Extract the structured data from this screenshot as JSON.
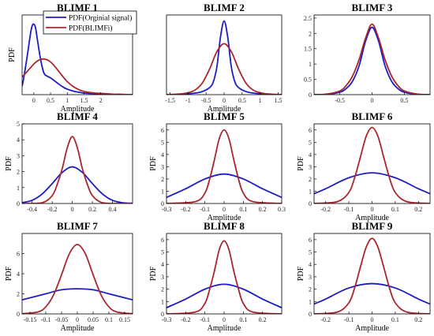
{
  "colors": {
    "original": "#1c1cc4",
    "blimf": "#a8262d",
    "axis": "#000000",
    "background": "#ffffff"
  },
  "legend": {
    "placement": "top-right",
    "original_label": "PDF(Orginial signal)",
    "blimf_label": "PDF(BLIMFi)"
  },
  "chart_data": [
    {
      "type": "line",
      "title": "BLIMF 1",
      "xlabel": "Amplitude",
      "ylabel": "PDF",
      "xlim": [
        -0.35,
        2.95
      ],
      "ylim": [
        0,
        1.9
      ],
      "xticks": [
        0,
        0.5,
        1,
        1.5,
        2
      ],
      "xtick_labels": [
        "0",
        "0.5",
        "1",
        "1.5",
        "2"
      ],
      "yticks": [],
      "ytick_labels": [],
      "series": [
        {
          "name": "PDF(Orginial signal)",
          "x": [
            -0.35,
            -0.3,
            -0.2,
            -0.1,
            -0.05,
            0,
            0.05,
            0.1,
            0.2,
            0.3,
            0.4,
            0.5,
            0.6,
            0.7,
            0.8,
            0.9,
            1,
            1.2,
            1.4,
            1.6,
            1.8,
            2,
            2.2,
            2.4,
            2.6,
            2.8,
            2.95
          ],
          "y": [
            0.2,
            0.4,
            0.9,
            1.45,
            1.64,
            1.68,
            1.6,
            1.35,
            0.85,
            0.52,
            0.44,
            0.4,
            0.34,
            0.28,
            0.22,
            0.17,
            0.13,
            0.08,
            0.05,
            0.03,
            0.02,
            0.01,
            0.01,
            0,
            0,
            0,
            0
          ]
        },
        {
          "name": "PDF(BLIMFi)",
          "x": [
            -0.35,
            -0.2,
            0,
            0.1,
            0.2,
            0.3,
            0.4,
            0.5,
            0.6,
            0.7,
            0.8,
            0.9,
            1,
            1.2,
            1.4,
            1.6,
            1.8,
            2,
            2.2,
            2.4,
            2.6,
            2.8,
            2.95
          ],
          "y": [
            0.42,
            0.55,
            0.73,
            0.8,
            0.84,
            0.85,
            0.83,
            0.78,
            0.7,
            0.6,
            0.5,
            0.4,
            0.31,
            0.18,
            0.1,
            0.06,
            0.04,
            0.03,
            0.02,
            0.01,
            0.01,
            0,
            0
          ]
        }
      ]
    },
    {
      "type": "line",
      "title": "BLIMF 2",
      "xlabel": "Amplitude",
      "ylabel": "",
      "xlim": [
        -1.6,
        1.6
      ],
      "ylim": [
        0,
        2
      ],
      "xticks": [
        -1.5,
        -1,
        -0.5,
        0,
        0.5,
        1,
        1.5
      ],
      "xtick_labels": [
        "-1.5",
        "-1",
        "-0.5",
        "0",
        "0.5",
        "1",
        "1.5"
      ],
      "yticks": [],
      "ytick_labels": [],
      "series": [
        {
          "name": "PDF(Orginial signal)",
          "x": [
            -1.6,
            -1.2,
            -0.8,
            -0.6,
            -0.4,
            -0.3,
            -0.2,
            -0.1,
            0,
            0.1,
            0.2,
            0.3,
            0.4,
            0.6,
            0.8,
            1.2,
            1.6
          ],
          "y": [
            0,
            0.01,
            0.04,
            0.08,
            0.18,
            0.32,
            0.7,
            1.45,
            1.85,
            1.45,
            0.7,
            0.32,
            0.18,
            0.08,
            0.04,
            0.01,
            0
          ]
        },
        {
          "name": "PDF(BLIMFi)",
          "x": [
            -1.6,
            -1.2,
            -1,
            -0.8,
            -0.6,
            -0.4,
            -0.2,
            0,
            0.2,
            0.4,
            0.6,
            0.8,
            1,
            1.2,
            1.6
          ],
          "y": [
            0,
            0.02,
            0.05,
            0.12,
            0.3,
            0.65,
            1.08,
            1.28,
            1.08,
            0.65,
            0.3,
            0.12,
            0.05,
            0.02,
            0
          ]
        }
      ]
    },
    {
      "type": "line",
      "title": "BLIMF 3",
      "xlabel": "",
      "ylabel": "",
      "xlim": [
        -0.9,
        0.9
      ],
      "ylim": [
        0,
        2.6
      ],
      "xticks": [
        -0.5,
        0,
        0.5
      ],
      "xtick_labels": [
        "-0.5",
        "0",
        "0.5"
      ],
      "yticks": [
        0,
        0.5,
        1,
        1.5,
        2,
        2.5
      ],
      "ytick_labels": [
        "0",
        "0.5",
        "1",
        "1.5",
        "2",
        "2.5"
      ],
      "series": [
        {
          "name": "PDF(Orginial signal)",
          "x": [
            -0.9,
            -0.7,
            -0.5,
            -0.4,
            -0.3,
            -0.2,
            -0.1,
            0,
            0.1,
            0.2,
            0.3,
            0.4,
            0.5,
            0.7,
            0.9
          ],
          "y": [
            0,
            0.01,
            0.08,
            0.2,
            0.45,
            0.95,
            1.75,
            2.2,
            1.75,
            0.95,
            0.45,
            0.2,
            0.08,
            0.01,
            0
          ]
        },
        {
          "name": "PDF(BLIMFi)",
          "x": [
            -0.9,
            -0.7,
            -0.5,
            -0.4,
            -0.3,
            -0.2,
            -0.1,
            0,
            0.1,
            0.2,
            0.3,
            0.4,
            0.5,
            0.7,
            0.9
          ],
          "y": [
            0,
            0.02,
            0.12,
            0.3,
            0.62,
            1.15,
            1.85,
            2.3,
            1.85,
            1.15,
            0.62,
            0.3,
            0.12,
            0.02,
            0
          ]
        }
      ]
    },
    {
      "type": "line",
      "title": "BLIMF 4",
      "xlabel": "",
      "ylabel": "PDF",
      "xlim": [
        -0.5,
        0.6
      ],
      "ylim": [
        0,
        5
      ],
      "xticks": [
        -0.4,
        -0.2,
        0,
        0.2,
        0.4
      ],
      "xtick_labels": [
        "-0.4",
        "-0.2",
        "0",
        "0.2",
        "0.4"
      ],
      "yticks": [
        0,
        1,
        2,
        3,
        4,
        5
      ],
      "ytick_labels": [
        "0",
        "1",
        "2",
        "3",
        "4",
        "5"
      ],
      "series": [
        {
          "name": "PDF(Orginial signal)",
          "x": [
            -0.5,
            -0.4,
            -0.3,
            -0.2,
            -0.1,
            0,
            0.1,
            0.2,
            0.3,
            0.4,
            0.5,
            0.6
          ],
          "y": [
            0.05,
            0.2,
            0.6,
            1.25,
            1.95,
            2.3,
            1.95,
            1.25,
            0.6,
            0.2,
            0.05,
            0.01
          ]
        },
        {
          "name": "PDF(BLIMFi)",
          "x": [
            -0.5,
            -0.3,
            -0.2,
            -0.15,
            -0.1,
            -0.05,
            0,
            0.05,
            0.1,
            0.15,
            0.2,
            0.3,
            0.5,
            0.6
          ],
          "y": [
            0,
            0.05,
            0.5,
            1.2,
            2.2,
            3.5,
            4.2,
            3.5,
            2.2,
            1.2,
            0.5,
            0.05,
            0,
            0
          ]
        }
      ]
    },
    {
      "type": "line",
      "title": "BLIMF 5",
      "xlabel": "Amplitude",
      "ylabel": "PDF",
      "xlim": [
        -0.3,
        0.3
      ],
      "ylim": [
        0,
        6.5
      ],
      "xticks": [
        -0.3,
        -0.2,
        -0.1,
        0,
        0.1,
        0.2,
        0.3
      ],
      "xtick_labels": [
        "-0.3",
        "-0.2",
        "-0.1",
        "0",
        "0.1",
        "0.2",
        "0.3"
      ],
      "yticks": [
        0,
        1,
        2,
        3,
        4,
        5,
        6
      ],
      "ytick_labels": [
        "0",
        "1",
        "2",
        "3",
        "4",
        "5",
        "6"
      ],
      "series": [
        {
          "name": "PDF(Orginial signal)",
          "x": [
            -0.3,
            -0.2,
            -0.1,
            0,
            0.1,
            0.2,
            0.3
          ],
          "y": [
            0.5,
            1.2,
            2.0,
            2.4,
            2.0,
            1.2,
            0.5
          ]
        },
        {
          "name": "PDF(BLIMFi)",
          "x": [
            -0.3,
            -0.15,
            -0.1,
            -0.075,
            -0.05,
            -0.025,
            0,
            0.025,
            0.05,
            0.075,
            0.1,
            0.15,
            0.3
          ],
          "y": [
            0,
            0.15,
            0.85,
            2.0,
            3.6,
            5.3,
            6.0,
            5.3,
            3.6,
            2.0,
            0.85,
            0.15,
            0
          ]
        }
      ]
    },
    {
      "type": "line",
      "title": "BLIMF 6",
      "xlabel": "Amplitude",
      "ylabel": "PDF",
      "xlim": [
        -0.25,
        0.25
      ],
      "ylim": [
        0,
        6.5
      ],
      "xticks": [
        -0.2,
        -0.1,
        0,
        0.1,
        0.2
      ],
      "xtick_labels": [
        "-0.2",
        "-0.1",
        "0",
        "0.1",
        "0.2"
      ],
      "yticks": [
        0,
        1,
        2,
        3,
        4,
        5,
        6
      ],
      "ytick_labels": [
        "0",
        "1",
        "2",
        "3",
        "4",
        "5",
        "6"
      ],
      "series": [
        {
          "name": "PDF(Orginial signal)",
          "x": [
            -0.25,
            -0.2,
            -0.1,
            0,
            0.1,
            0.2,
            0.25
          ],
          "y": [
            0.8,
            1.2,
            2.1,
            2.5,
            2.1,
            1.2,
            0.8
          ]
        },
        {
          "name": "PDF(BLIMFi)",
          "x": [
            -0.25,
            -0.15,
            -0.1,
            -0.075,
            -0.05,
            -0.025,
            0,
            0.025,
            0.05,
            0.075,
            0.1,
            0.15,
            0.25
          ],
          "y": [
            0,
            0.15,
            0.9,
            2.1,
            3.8,
            5.5,
            6.2,
            5.5,
            3.8,
            2.1,
            0.9,
            0.15,
            0
          ]
        }
      ]
    },
    {
      "type": "line",
      "title": "BLIMF 7",
      "xlabel": "Amplitude",
      "ylabel": "PDF",
      "xlim": [
        -0.175,
        0.175
      ],
      "ylim": [
        0,
        8
      ],
      "xticks": [
        -0.15,
        -0.1,
        -0.05,
        0,
        0.05,
        0.1,
        0.15
      ],
      "xtick_labels": [
        "-0.15",
        "-0.1",
        "-0.05",
        "0",
        "0.05",
        "0.1",
        "0.15"
      ],
      "yticks": [
        0,
        2,
        4,
        6
      ],
      "ytick_labels": [
        "0",
        "2",
        "4",
        "6"
      ],
      "series": [
        {
          "name": "PDF(Orginial signal)",
          "x": [
            -0.175,
            -0.1,
            -0.05,
            0,
            0.05,
            0.1,
            0.175
          ],
          "y": [
            1.4,
            2.0,
            2.4,
            2.5,
            2.4,
            2.0,
            1.4
          ]
        },
        {
          "name": "PDF(BLIMFi)",
          "x": [
            -0.175,
            -0.125,
            -0.1,
            -0.075,
            -0.05,
            -0.025,
            0,
            0.025,
            0.05,
            0.075,
            0.1,
            0.125,
            0.175
          ],
          "y": [
            0.02,
            0.2,
            0.7,
            1.9,
            3.9,
            6.0,
            6.9,
            6.0,
            3.9,
            1.9,
            0.7,
            0.2,
            0.02
          ]
        }
      ]
    },
    {
      "type": "line",
      "title": "BLIMF 8",
      "xlabel": "Amplitude",
      "ylabel": "PDF",
      "xlim": [
        -0.3,
        0.3
      ],
      "ylim": [
        0,
        6.5
      ],
      "xticks": [
        -0.3,
        -0.2,
        -0.1,
        0,
        0.1,
        0.2
      ],
      "xtick_labels": [
        "-0.3",
        "-0.2",
        "-0.1",
        "0",
        "0.1",
        "0.2"
      ],
      "yticks": [
        0,
        1,
        2,
        3,
        4,
        5,
        6
      ],
      "ytick_labels": [
        "0",
        "1",
        "2",
        "3",
        "4",
        "5",
        "6"
      ],
      "series": [
        {
          "name": "PDF(Orginial signal)",
          "x": [
            -0.3,
            -0.2,
            -0.1,
            0,
            0.1,
            0.2,
            0.3
          ],
          "y": [
            0.5,
            1.2,
            2.0,
            2.4,
            2.0,
            1.2,
            0.5
          ]
        },
        {
          "name": "PDF(BLIMFi)",
          "x": [
            -0.3,
            -0.15,
            -0.1,
            -0.075,
            -0.05,
            -0.025,
            0,
            0.025,
            0.05,
            0.075,
            0.1,
            0.15,
            0.3
          ],
          "y": [
            0,
            0.15,
            0.85,
            2.0,
            3.5,
            5.2,
            5.9,
            5.2,
            3.5,
            2.0,
            0.85,
            0.15,
            0
          ]
        }
      ]
    },
    {
      "type": "line",
      "title": "BLIMF 9",
      "xlabel": "Amplitude",
      "ylabel": "PDF",
      "xlim": [
        -0.25,
        0.25
      ],
      "ylim": [
        0,
        6.5
      ],
      "xticks": [
        -0.2,
        -0.1,
        0,
        0.1,
        0.2
      ],
      "xtick_labels": [
        "-0.2",
        "-0.1",
        "0",
        "0.1",
        "0.2"
      ],
      "yticks": [
        0,
        1,
        2,
        3,
        4,
        5,
        6
      ],
      "ytick_labels": [
        "0",
        "1",
        "2",
        "3",
        "4",
        "5",
        "6"
      ],
      "series": [
        {
          "name": "PDF(Orginial signal)",
          "x": [
            -0.25,
            -0.2,
            -0.1,
            0,
            0.1,
            0.2,
            0.25
          ],
          "y": [
            0.8,
            1.2,
            2.1,
            2.45,
            2.1,
            1.2,
            0.8
          ]
        },
        {
          "name": "PDF(BLIMFi)",
          "x": [
            -0.25,
            -0.15,
            -0.1,
            -0.075,
            -0.05,
            -0.025,
            0,
            0.025,
            0.05,
            0.075,
            0.1,
            0.15,
            0.25
          ],
          "y": [
            0,
            0.15,
            0.9,
            2.1,
            3.8,
            5.4,
            6.1,
            5.4,
            3.8,
            2.1,
            0.9,
            0.15,
            0
          ]
        }
      ]
    }
  ]
}
